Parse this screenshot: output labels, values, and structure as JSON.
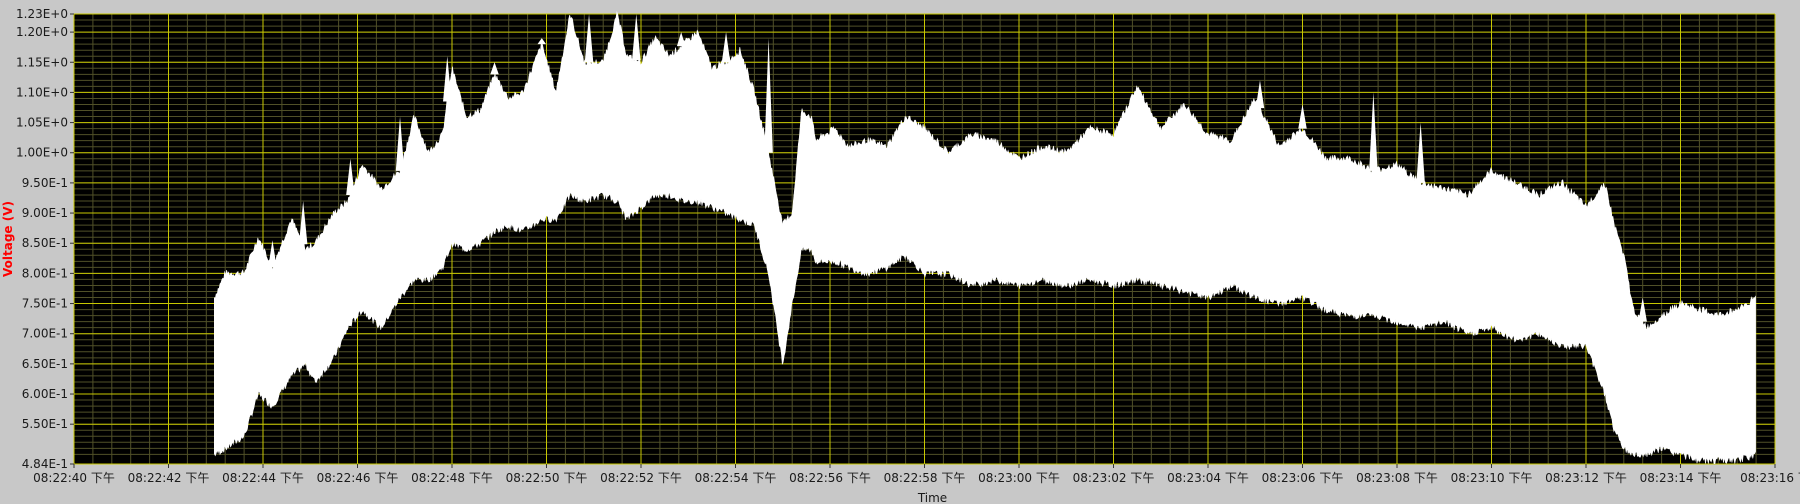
{
  "chart_data": {
    "type": "area",
    "title": "",
    "xlabel": "Time",
    "ylabel": "Voltage (V)",
    "ylim": [
      0.484,
      1.23
    ],
    "xlim_seconds_from_first_tick": [
      0,
      36
    ],
    "grid": true,
    "colors": {
      "frame_bg": "#c8c8c8",
      "plot_bg": "#000000",
      "major_grid": "#c8c800",
      "minor_grid": "#505028",
      "signal": "#ffffff",
      "ylabel_color": "#ff0000"
    },
    "y_ticks": [
      {
        "value": 1.23,
        "label": "1.23E+0"
      },
      {
        "value": 1.2,
        "label": "1.20E+0"
      },
      {
        "value": 1.15,
        "label": "1.15E+0"
      },
      {
        "value": 1.1,
        "label": "1.10E+0"
      },
      {
        "value": 1.05,
        "label": "1.05E+0"
      },
      {
        "value": 1.0,
        "label": "1.00E+0"
      },
      {
        "value": 0.95,
        "label": "9.50E-1"
      },
      {
        "value": 0.9,
        "label": "9.00E-1"
      },
      {
        "value": 0.85,
        "label": "8.50E-1"
      },
      {
        "value": 0.8,
        "label": "8.00E-1"
      },
      {
        "value": 0.75,
        "label": "7.50E-1"
      },
      {
        "value": 0.7,
        "label": "7.00E-1"
      },
      {
        "value": 0.65,
        "label": "6.50E-1"
      },
      {
        "value": 0.6,
        "label": "6.00E-1"
      },
      {
        "value": 0.55,
        "label": "5.50E-1"
      },
      {
        "value": 0.484,
        "label": "4.84E-1"
      }
    ],
    "x_ticks": [
      "08:22:40 下午",
      "08:22:42 下午",
      "08:22:44 下午",
      "08:22:46 下午",
      "08:22:48 下午",
      "08:22:50 下午",
      "08:22:52 下午",
      "08:22:54 下午",
      "08:22:56 下午",
      "08:22:58 下午",
      "08:23:00 下午",
      "08:23:02 下午",
      "08:23:04 下午",
      "08:23:06 下午",
      "08:23:08 下午",
      "08:23:10 下午",
      "08:23:12 下午",
      "08:23:14 下午",
      "08:23:16 下"
    ],
    "envelope": {
      "t": [
        2.97,
        3.2,
        3.6,
        3.9,
        4.2,
        4.6,
        4.9,
        5.1,
        5.5,
        5.8,
        6.1,
        6.5,
        6.9,
        7.2,
        7.5,
        7.8,
        8.0,
        8.3,
        8.6,
        8.9,
        9.2,
        9.5,
        9.9,
        10.2,
        10.5,
        10.8,
        11.2,
        11.5,
        11.7,
        12.0,
        12.3,
        12.6,
        12.9,
        13.2,
        13.5,
        13.8,
        14.1,
        14.4,
        14.7,
        15.0,
        15.2,
        15.4,
        15.6,
        15.7,
        15.9,
        16.1,
        16.4,
        16.8,
        17.2,
        17.6,
        18.0,
        18.5,
        19.0,
        19.5,
        20.0,
        20.5,
        21.0,
        21.5,
        22.0,
        22.5,
        23.0,
        23.5,
        24.0,
        24.5,
        25.0,
        25.5,
        26.0,
        26.5,
        27.0,
        27.5,
        28.0,
        28.5,
        29.0,
        29.5,
        30.0,
        30.5,
        31.0,
        31.5,
        32.0,
        32.4,
        32.6,
        32.8,
        33.0,
        33.3,
        33.6,
        34.0,
        34.4,
        34.8,
        35.2,
        35.6
      ],
      "upper": [
        0.76,
        0.8,
        0.8,
        0.86,
        0.81,
        0.89,
        0.84,
        0.85,
        0.9,
        0.92,
        0.98,
        0.94,
        0.97,
        1.06,
        1.0,
        1.03,
        1.14,
        1.06,
        1.07,
        1.13,
        1.09,
        1.1,
        1.18,
        1.1,
        1.23,
        1.15,
        1.15,
        1.23,
        1.16,
        1.15,
        1.19,
        1.16,
        1.18,
        1.2,
        1.14,
        1.15,
        1.17,
        1.1,
        1.0,
        0.88,
        0.9,
        1.07,
        1.06,
        1.02,
        1.03,
        1.04,
        1.01,
        1.02,
        1.01,
        1.06,
        1.04,
        1.0,
        1.03,
        1.02,
        0.99,
        1.01,
        1.0,
        1.04,
        1.03,
        1.11,
        1.04,
        1.08,
        1.03,
        1.02,
        1.09,
        1.01,
        1.04,
        0.99,
        0.99,
        0.97,
        0.98,
        0.95,
        0.94,
        0.93,
        0.97,
        0.95,
        0.93,
        0.95,
        0.91,
        0.95,
        0.88,
        0.83,
        0.74,
        0.71,
        0.73,
        0.75,
        0.74,
        0.73,
        0.74,
        0.76
      ],
      "lower": [
        0.5,
        0.51,
        0.53,
        0.6,
        0.58,
        0.63,
        0.65,
        0.62,
        0.66,
        0.71,
        0.74,
        0.71,
        0.76,
        0.79,
        0.79,
        0.81,
        0.85,
        0.84,
        0.85,
        0.87,
        0.88,
        0.87,
        0.89,
        0.89,
        0.93,
        0.92,
        0.93,
        0.92,
        0.89,
        0.91,
        0.93,
        0.93,
        0.92,
        0.92,
        0.91,
        0.9,
        0.89,
        0.88,
        0.8,
        0.65,
        0.75,
        0.84,
        0.84,
        0.82,
        0.82,
        0.82,
        0.81,
        0.8,
        0.81,
        0.83,
        0.8,
        0.8,
        0.78,
        0.79,
        0.78,
        0.79,
        0.78,
        0.79,
        0.78,
        0.79,
        0.78,
        0.77,
        0.76,
        0.78,
        0.76,
        0.75,
        0.76,
        0.74,
        0.73,
        0.73,
        0.72,
        0.71,
        0.72,
        0.7,
        0.71,
        0.69,
        0.7,
        0.68,
        0.68,
        0.6,
        0.54,
        0.51,
        0.5,
        0.5,
        0.51,
        0.5,
        0.49,
        0.49,
        0.49,
        0.5
      ]
    },
    "spikes": [
      {
        "t": 4.2,
        "upper": 0.855
      },
      {
        "t": 4.85,
        "upper": 0.92
      },
      {
        "t": 5.85,
        "upper": 0.99
      },
      {
        "t": 6.9,
        "upper": 1.06
      },
      {
        "t": 7.9,
        "upper": 1.16
      },
      {
        "t": 8.9,
        "upper": 1.15
      },
      {
        "t": 9.9,
        "upper": 1.19
      },
      {
        "t": 10.9,
        "upper": 1.23
      },
      {
        "t": 11.9,
        "upper": 1.23
      },
      {
        "t": 12.85,
        "upper": 1.2
      },
      {
        "t": 13.8,
        "upper": 1.2
      },
      {
        "t": 14.7,
        "upper": 1.19
      },
      {
        "t": 25.1,
        "upper": 1.12
      },
      {
        "t": 26.0,
        "upper": 1.08
      },
      {
        "t": 27.5,
        "upper": 1.1
      },
      {
        "t": 28.5,
        "upper": 1.05
      },
      {
        "t": 33.2,
        "upper": 0.76
      }
    ]
  }
}
